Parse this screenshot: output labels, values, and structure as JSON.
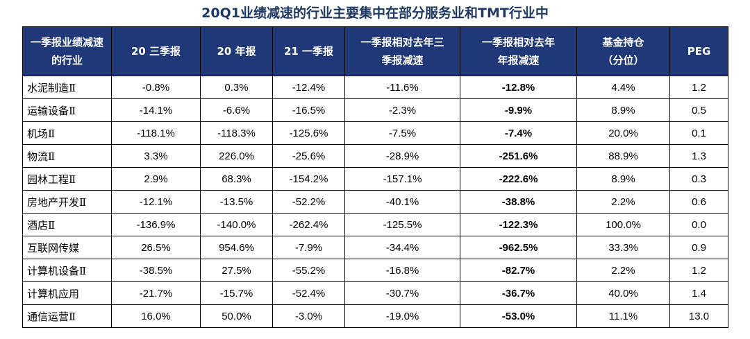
{
  "title": "20Q1业绩减速的行业主要集中在部分服务业和TMT行业中",
  "headers": [
    [
      "一季报业绩减速",
      "的行业"
    ],
    [
      "20 三季报"
    ],
    [
      "20 年报"
    ],
    [
      "21 一季报"
    ],
    [
      "一季报相对去年三",
      "季报减速"
    ],
    [
      "一季报相对去年",
      "年报减速"
    ],
    [
      "基金持仓",
      "（分位）"
    ],
    [
      "PEG"
    ]
  ],
  "rows": [
    [
      "水泥制造Ⅱ",
      "-0.8%",
      "0.3%",
      "-12.4%",
      "-11.6%",
      "-12.8%",
      "4.4%",
      "1.2"
    ],
    [
      "运输设备Ⅱ",
      "-14.1%",
      "-6.6%",
      "-16.5%",
      "-2.3%",
      "-9.9%",
      "8.9%",
      "0.5"
    ],
    [
      "机场Ⅱ",
      "-118.1%",
      "-118.3%",
      "-125.6%",
      "-7.5%",
      "-7.4%",
      "20.0%",
      "0.1"
    ],
    [
      "物流Ⅱ",
      "3.3%",
      "226.0%",
      "-25.6%",
      "-28.9%",
      "-251.6%",
      "88.9%",
      "1.3"
    ],
    [
      "园林工程Ⅱ",
      "2.9%",
      "68.3%",
      "-154.2%",
      "-157.1%",
      "-222.6%",
      "8.9%",
      "0.3"
    ],
    [
      "房地产开发Ⅱ",
      "-12.1%",
      "-13.5%",
      "-52.2%",
      "-40.1%",
      "-38.8%",
      "2.2%",
      "0.6"
    ],
    [
      "酒店Ⅱ",
      "-136.9%",
      "-140.0%",
      "-262.4%",
      "-125.5%",
      "-122.3%",
      "100.0%",
      "0.0"
    ],
    [
      "互联网传媒",
      "26.5%",
      "954.6%",
      "-7.9%",
      "-34.4%",
      "-962.5%",
      "33.3%",
      "0.9"
    ],
    [
      "计算机设备Ⅱ",
      "-38.5%",
      "27.5%",
      "-55.2%",
      "-16.8%",
      "-82.7%",
      "2.2%",
      "1.2"
    ],
    [
      "计算机应用",
      "-21.7%",
      "-15.7%",
      "-52.4%",
      "-30.7%",
      "-36.7%",
      "40.0%",
      "1.4"
    ],
    [
      "通信运营Ⅱ",
      "16.0%",
      "50.0%",
      "-3.0%",
      "-19.0%",
      "-53.0%",
      "11.1%",
      "13.0"
    ]
  ],
  "bold_column": 5,
  "colors": {
    "header_bg": "#1f3878",
    "header_text": "#ffffff",
    "title_text": "#1f3864"
  }
}
